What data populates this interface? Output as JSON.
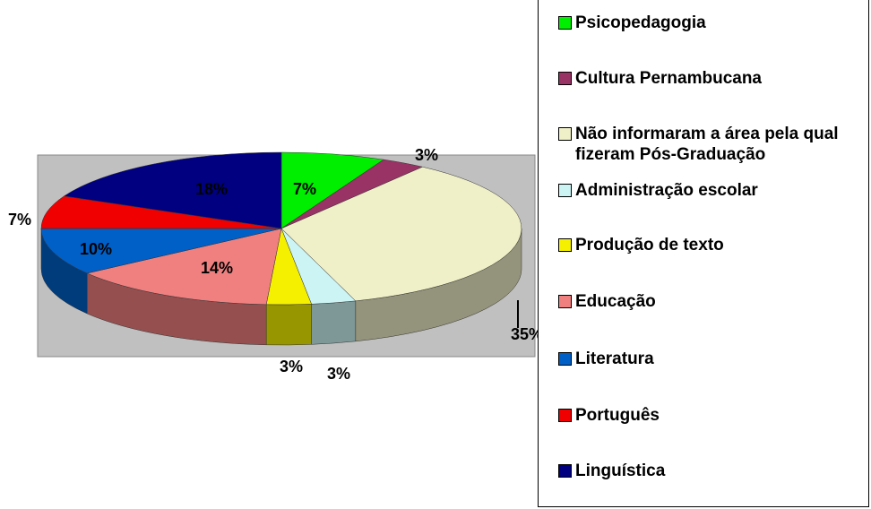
{
  "chart_data": {
    "type": "pie",
    "categories": [
      "Psicopedagogia",
      "Cultura Pernambucana",
      "Não informaram a área pela qual fizeram Pós-Graduação",
      "Administração escolar",
      "Produção de texto",
      "Educação",
      "Literatura",
      "Português",
      "Linguística"
    ],
    "values": [
      7,
      3,
      35,
      3,
      3,
      14,
      10,
      7,
      18
    ],
    "value_labels": [
      "7%",
      "3%",
      "35%",
      "3%",
      "3%",
      "14%",
      "10%",
      "7%",
      "18%"
    ],
    "colors": [
      "#00ee00",
      "#993366",
      "#efefc8",
      "#ccf4f4",
      "#f4f000",
      "#f08080",
      "#0060c8",
      "#f00000",
      "#000080"
    ],
    "legend": "right"
  }
}
